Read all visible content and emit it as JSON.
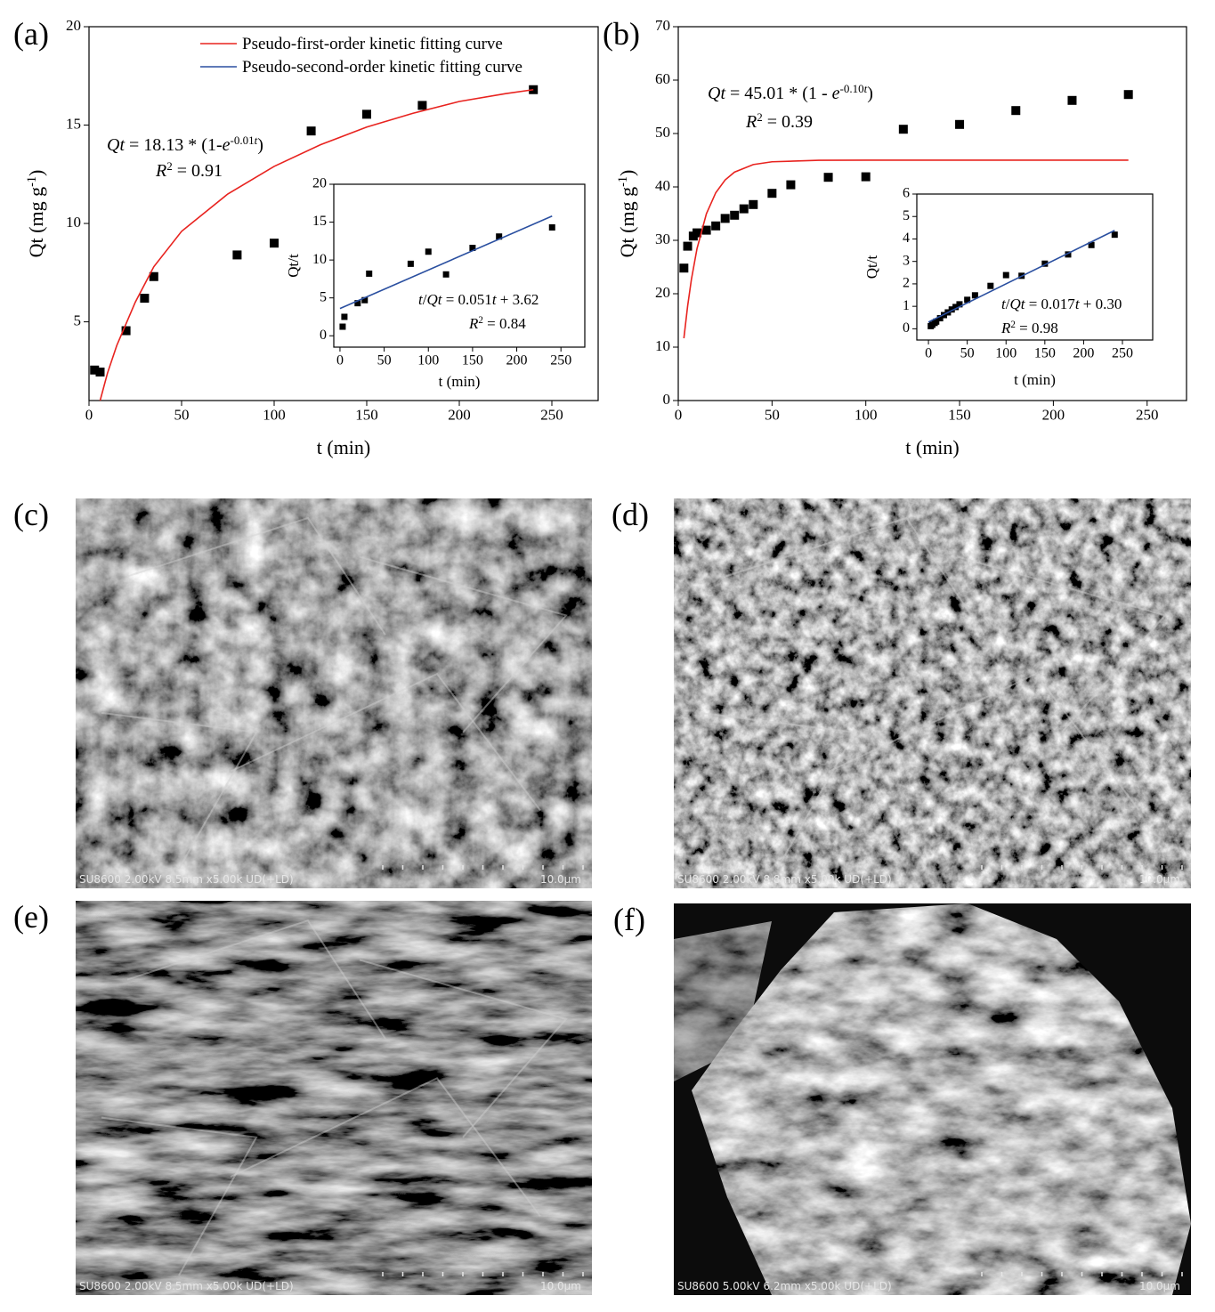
{
  "chart_data": [
    {
      "type": "scatter",
      "panel_label": "(a)",
      "x_label": "t (min)",
      "y_label": [
        "Qt (mg g",
        "-1",
        ")"
      ],
      "xlim": [
        0,
        275
      ],
      "xticks": [
        0,
        50,
        100,
        150,
        200,
        250
      ],
      "ylim": [
        1,
        20
      ],
      "yticks": [
        5,
        10,
        15,
        20
      ],
      "legend": [
        {
          "name": "Pseudo-first-order kinetic fitting curve",
          "color": "#e8231f"
        },
        {
          "name": "Pseudo-second-order kinetic fitting curve",
          "color": "#2a4fa0"
        }
      ],
      "annotations": [
        [
          "Qt",
          " = 18.13 * (1-",
          "e",
          "-0.01",
          "t",
          ")"
        ],
        [
          "R",
          "2",
          " = 0.91"
        ]
      ],
      "series": [
        {
          "mode": "markers",
          "color": "#000000",
          "x": [
            3,
            6,
            20,
            30,
            35,
            80,
            100,
            120,
            150,
            180,
            240
          ],
          "values": [
            2.55,
            2.45,
            4.55,
            6.2,
            7.3,
            8.4,
            9.0,
            14.7,
            15.55,
            16.0,
            16.8
          ]
        },
        {
          "mode": "line",
          "color": "#e8231f",
          "x": [
            6,
            10,
            15,
            25,
            35,
            50,
            75,
            100,
            125,
            150,
            175,
            200,
            225,
            240
          ],
          "values": [
            1.0,
            2.4,
            3.8,
            6.0,
            7.8,
            9.6,
            11.5,
            12.9,
            14.0,
            14.9,
            15.6,
            16.2,
            16.6,
            16.8
          ]
        }
      ]
    },
    {
      "type": "scatter",
      "x_label": "t (min)",
      "y_label": [
        "Qt/t"
      ],
      "xlim": [
        -7,
        277
      ],
      "xticks": [
        0,
        50,
        100,
        150,
        200,
        250
      ],
      "ylim": [
        -1.5,
        20
      ],
      "yticks": [
        0,
        5,
        10,
        15,
        20
      ],
      "annotations": [
        [
          "t",
          "/",
          "Qt",
          " = 0.051",
          "t",
          " + 3.62"
        ],
        [
          "R",
          "2",
          " = 0.84"
        ]
      ],
      "series": [
        {
          "mode": "markers",
          "color": "#000000",
          "x": [
            3,
            5,
            20,
            28,
            33,
            80,
            100,
            120,
            150,
            180,
            240
          ],
          "values": [
            1.2,
            2.5,
            4.3,
            4.7,
            8.2,
            9.5,
            11.1,
            8.1,
            11.6,
            13.1,
            14.3
          ]
        },
        {
          "mode": "line",
          "color": "#2a4fa0",
          "x": [
            0,
            240
          ],
          "values": [
            3.6,
            15.8
          ]
        }
      ]
    },
    {
      "type": "scatter",
      "panel_label": "(b)",
      "x_label": "t (min)",
      "y_label": [
        "Qt (mg g",
        "-1",
        ")"
      ],
      "xlim": [
        0,
        271
      ],
      "xticks": [
        0,
        50,
        100,
        150,
        200,
        250
      ],
      "ylim": [
        0,
        70
      ],
      "yticks": [
        0,
        10,
        20,
        30,
        40,
        50,
        60,
        70
      ],
      "annotations": [
        [
          "Qt",
          " = 45.01 * (1 - ",
          "e",
          "-0.10",
          "t",
          ")"
        ],
        [
          "R",
          "2",
          " = 0.39"
        ]
      ],
      "series": [
        {
          "mode": "markers",
          "color": "#000000",
          "x": [
            3,
            5,
            8,
            10,
            15,
            20,
            25,
            30,
            35,
            40,
            50,
            60,
            80,
            100,
            120,
            150,
            180,
            210,
            240
          ],
          "values": [
            24.8,
            28.9,
            30.8,
            31.4,
            31.9,
            32.7,
            34.1,
            34.7,
            35.9,
            36.7,
            38.8,
            40.4,
            41.8,
            41.9,
            50.8,
            51.7,
            54.3,
            56.2,
            57.3
          ]
        },
        {
          "mode": "line",
          "color": "#e8231f",
          "x": [
            3,
            5,
            7,
            10,
            15,
            20,
            25,
            30,
            40,
            50,
            75,
            100,
            150,
            200,
            240
          ],
          "values": [
            11.67,
            17.71,
            22.66,
            28.46,
            34.97,
            38.92,
            41.31,
            42.77,
            44.19,
            44.71,
            44.99,
            45.01,
            45.01,
            45.01,
            45.01
          ]
        }
      ]
    },
    {
      "type": "scatter",
      "x_label": "t (min)",
      "y_label": [
        "Qt/t"
      ],
      "xlim": [
        -15,
        289
      ],
      "xticks": [
        0,
        50,
        100,
        150,
        200,
        250
      ],
      "ylim": [
        -0.5,
        6
      ],
      "yticks": [
        0,
        1,
        2,
        3,
        4,
        5,
        6
      ],
      "annotations": [
        [
          "t",
          "/",
          "Qt",
          " = 0.017",
          "t",
          " + 0.30"
        ],
        [
          "R",
          "2",
          " = 0.98"
        ]
      ],
      "series": [
        {
          "mode": "markers",
          "color": "#000000",
          "x": [
            3,
            5,
            8,
            10,
            15,
            20,
            25,
            30,
            35,
            40,
            50,
            60,
            80,
            100,
            120,
            150,
            180,
            210,
            240
          ],
          "values": [
            0.12,
            0.18,
            0.26,
            0.32,
            0.47,
            0.61,
            0.73,
            0.86,
            0.97,
            1.09,
            1.29,
            1.49,
            1.91,
            2.39,
            2.36,
            2.9,
            3.31,
            3.73,
            4.19
          ]
        },
        {
          "mode": "line",
          "color": "#2a4fa0",
          "x": [
            0,
            240
          ],
          "values": [
            0.3,
            4.38
          ]
        }
      ]
    }
  ],
  "images": [
    {
      "label": "(c)",
      "caption": "SU8600 2.00kV 8.5mm x5.00k UD(+LD)",
      "scale": "10.0μm"
    },
    {
      "label": "(d)",
      "caption": "SU8600 2.00kV 8.8mm x5.00k UD(+LD)",
      "scale": "10.0μm"
    },
    {
      "label": "(e)",
      "caption": "SU8600 2.00kV 8.5mm x5.00k UD(+LD)",
      "scale": "10.0μm"
    },
    {
      "label": "(f)",
      "caption": "SU8600 5.00kV 6.2mm x5.00k UD(+LD)",
      "scale": "10.0μm"
    }
  ]
}
